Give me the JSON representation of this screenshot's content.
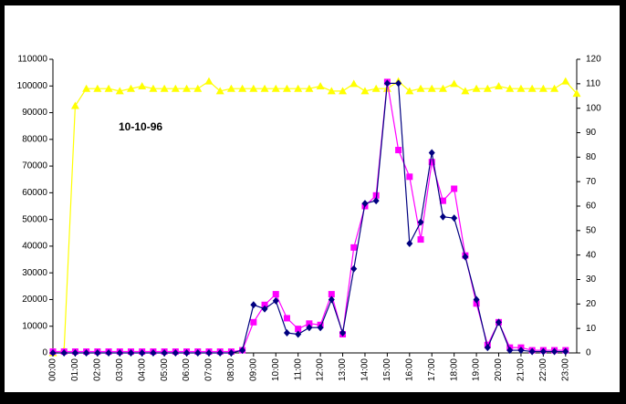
{
  "chart_data": {
    "type": "line",
    "annotation": "10-10-96",
    "categories": [
      "00:00",
      null,
      "01:00",
      null,
      "02:00",
      null,
      "03:00",
      null,
      "04:00",
      null,
      "05:00",
      null,
      "06:00",
      null,
      "07:00",
      null,
      "08:00",
      null,
      "09:00",
      null,
      "10:00",
      null,
      "11:00",
      null,
      "12:00",
      null,
      "13:00",
      null,
      "14:00",
      null,
      "15:00",
      null,
      "16:00",
      null,
      "17:00",
      null,
      "18:00",
      null,
      "19:00",
      null,
      "20:00",
      null,
      "21:00",
      null,
      "22:00",
      null,
      "23:00",
      null
    ],
    "series": [
      {
        "color": "#000080",
        "marker": "diamond",
        "axis": "y",
        "values": [
          0,
          0,
          0,
          0,
          0,
          0,
          0,
          0,
          0,
          0,
          0,
          0,
          0,
          0,
          0,
          0,
          0,
          1000,
          18000,
          16500,
          19500,
          7500,
          7000,
          9500,
          9500,
          20000,
          7500,
          31500,
          56000,
          57000,
          101000,
          101000,
          41000,
          49000,
          75000,
          51000,
          50500,
          36000,
          20000,
          2000,
          11500,
          1000,
          1000,
          500,
          500,
          500,
          500,
          null
        ]
      },
      {
        "color": "#ff00ff",
        "marker": "square",
        "axis": "y",
        "values": [
          500,
          500,
          500,
          500,
          500,
          500,
          500,
          500,
          500,
          500,
          500,
          500,
          500,
          500,
          500,
          500,
          500,
          1000,
          11500,
          18000,
          22000,
          13000,
          9000,
          11000,
          10500,
          22000,
          7000,
          39500,
          55000,
          59000,
          101500,
          76000,
          66000,
          42500,
          71500,
          57000,
          61500,
          36500,
          18500,
          3000,
          11500,
          2000,
          2000,
          1000,
          1000,
          1000,
          1000,
          null
        ]
      },
      {
        "color": "#ffff00",
        "marker": "triangle",
        "axis": "y2",
        "values": [
          0,
          1,
          101,
          108,
          108,
          108,
          107,
          108,
          109,
          108,
          108,
          108,
          108,
          108,
          111,
          107,
          108,
          108,
          108,
          108,
          108,
          108,
          108,
          108,
          109,
          107,
          107,
          110,
          107,
          108,
          108,
          111,
          107,
          108,
          108,
          108,
          110,
          107,
          108,
          108,
          109,
          108,
          108,
          108,
          108,
          108,
          111,
          106
        ]
      }
    ],
    "ylim": [
      0,
      110000
    ],
    "yticks": [
      0,
      10000,
      20000,
      30000,
      40000,
      50000,
      60000,
      70000,
      80000,
      90000,
      100000,
      110000
    ],
    "y2lim": [
      0,
      120
    ],
    "y2ticks": [
      0,
      10,
      20,
      30,
      40,
      50,
      60,
      70,
      80,
      90,
      100,
      110,
      120
    ],
    "grid": false
  }
}
